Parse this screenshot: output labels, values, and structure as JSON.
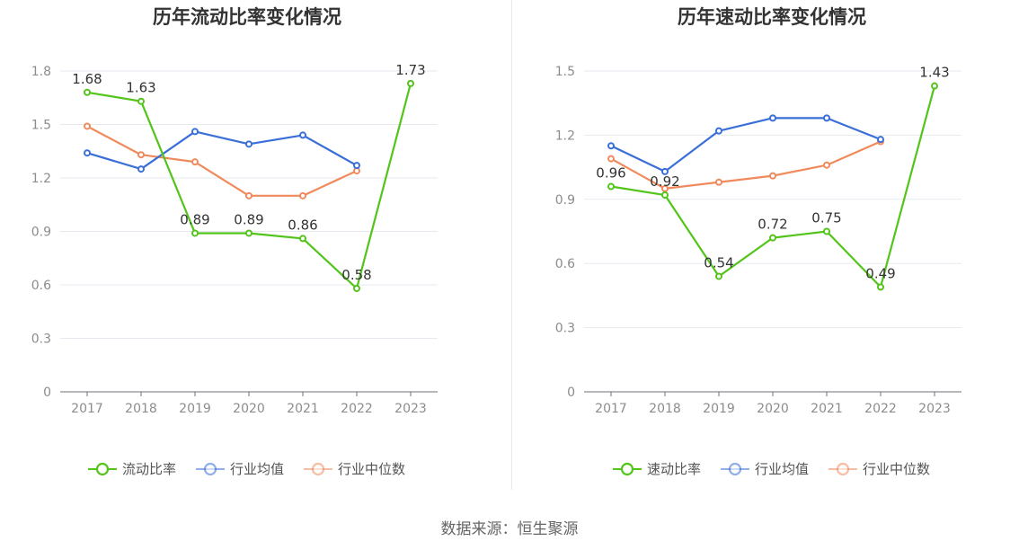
{
  "chart_data": [
    {
      "type": "line",
      "title": "历年流动比率变化情况",
      "categories": [
        "2017",
        "2018",
        "2019",
        "2020",
        "2021",
        "2022",
        "2023"
      ],
      "ylim": [
        0,
        1.8
      ],
      "yticks": [
        "0",
        "0.3",
        "0.6",
        "0.9",
        "1.2",
        "1.5",
        "1.8"
      ],
      "grid": true,
      "legend_position": "bottom",
      "series": [
        {
          "name": "流动比率",
          "color": "#52c41a",
          "values": [
            1.68,
            1.63,
            0.89,
            0.89,
            0.86,
            0.58,
            1.73
          ],
          "labels": [
            "1.68",
            "1.63",
            "0.89",
            "0.89",
            "0.86",
            "0.58",
            "1.73"
          ]
        },
        {
          "name": "行业均值",
          "color": "#3a6fd8",
          "values": [
            1.34,
            1.25,
            1.46,
            1.39,
            1.44,
            1.27,
            null
          ]
        },
        {
          "name": "行业中位数",
          "color": "#f08a5d",
          "values": [
            1.49,
            1.33,
            1.29,
            1.1,
            1.1,
            1.24,
            null
          ]
        }
      ]
    },
    {
      "type": "line",
      "title": "历年速动比率变化情况",
      "categories": [
        "2017",
        "2018",
        "2019",
        "2020",
        "2021",
        "2022",
        "2023"
      ],
      "ylim": [
        0,
        1.5
      ],
      "yticks": [
        "0",
        "0.3",
        "0.6",
        "0.9",
        "1.2",
        "1.5"
      ],
      "grid": true,
      "legend_position": "bottom",
      "series": [
        {
          "name": "速动比率",
          "color": "#52c41a",
          "values": [
            0.96,
            0.92,
            0.54,
            0.72,
            0.75,
            0.49,
            1.43
          ],
          "labels": [
            "0.96",
            "0.92",
            "0.54",
            "0.72",
            "0.75",
            "0.49",
            "1.43"
          ]
        },
        {
          "name": "行业均值",
          "color": "#3a6fd8",
          "values": [
            1.15,
            1.03,
            1.22,
            1.28,
            1.28,
            1.18,
            null
          ]
        },
        {
          "name": "行业中位数",
          "color": "#f08a5d",
          "values": [
            1.09,
            0.95,
            0.98,
            1.01,
            1.06,
            1.17,
            null
          ]
        }
      ]
    }
  ],
  "source": "数据来源：恒生聚源"
}
